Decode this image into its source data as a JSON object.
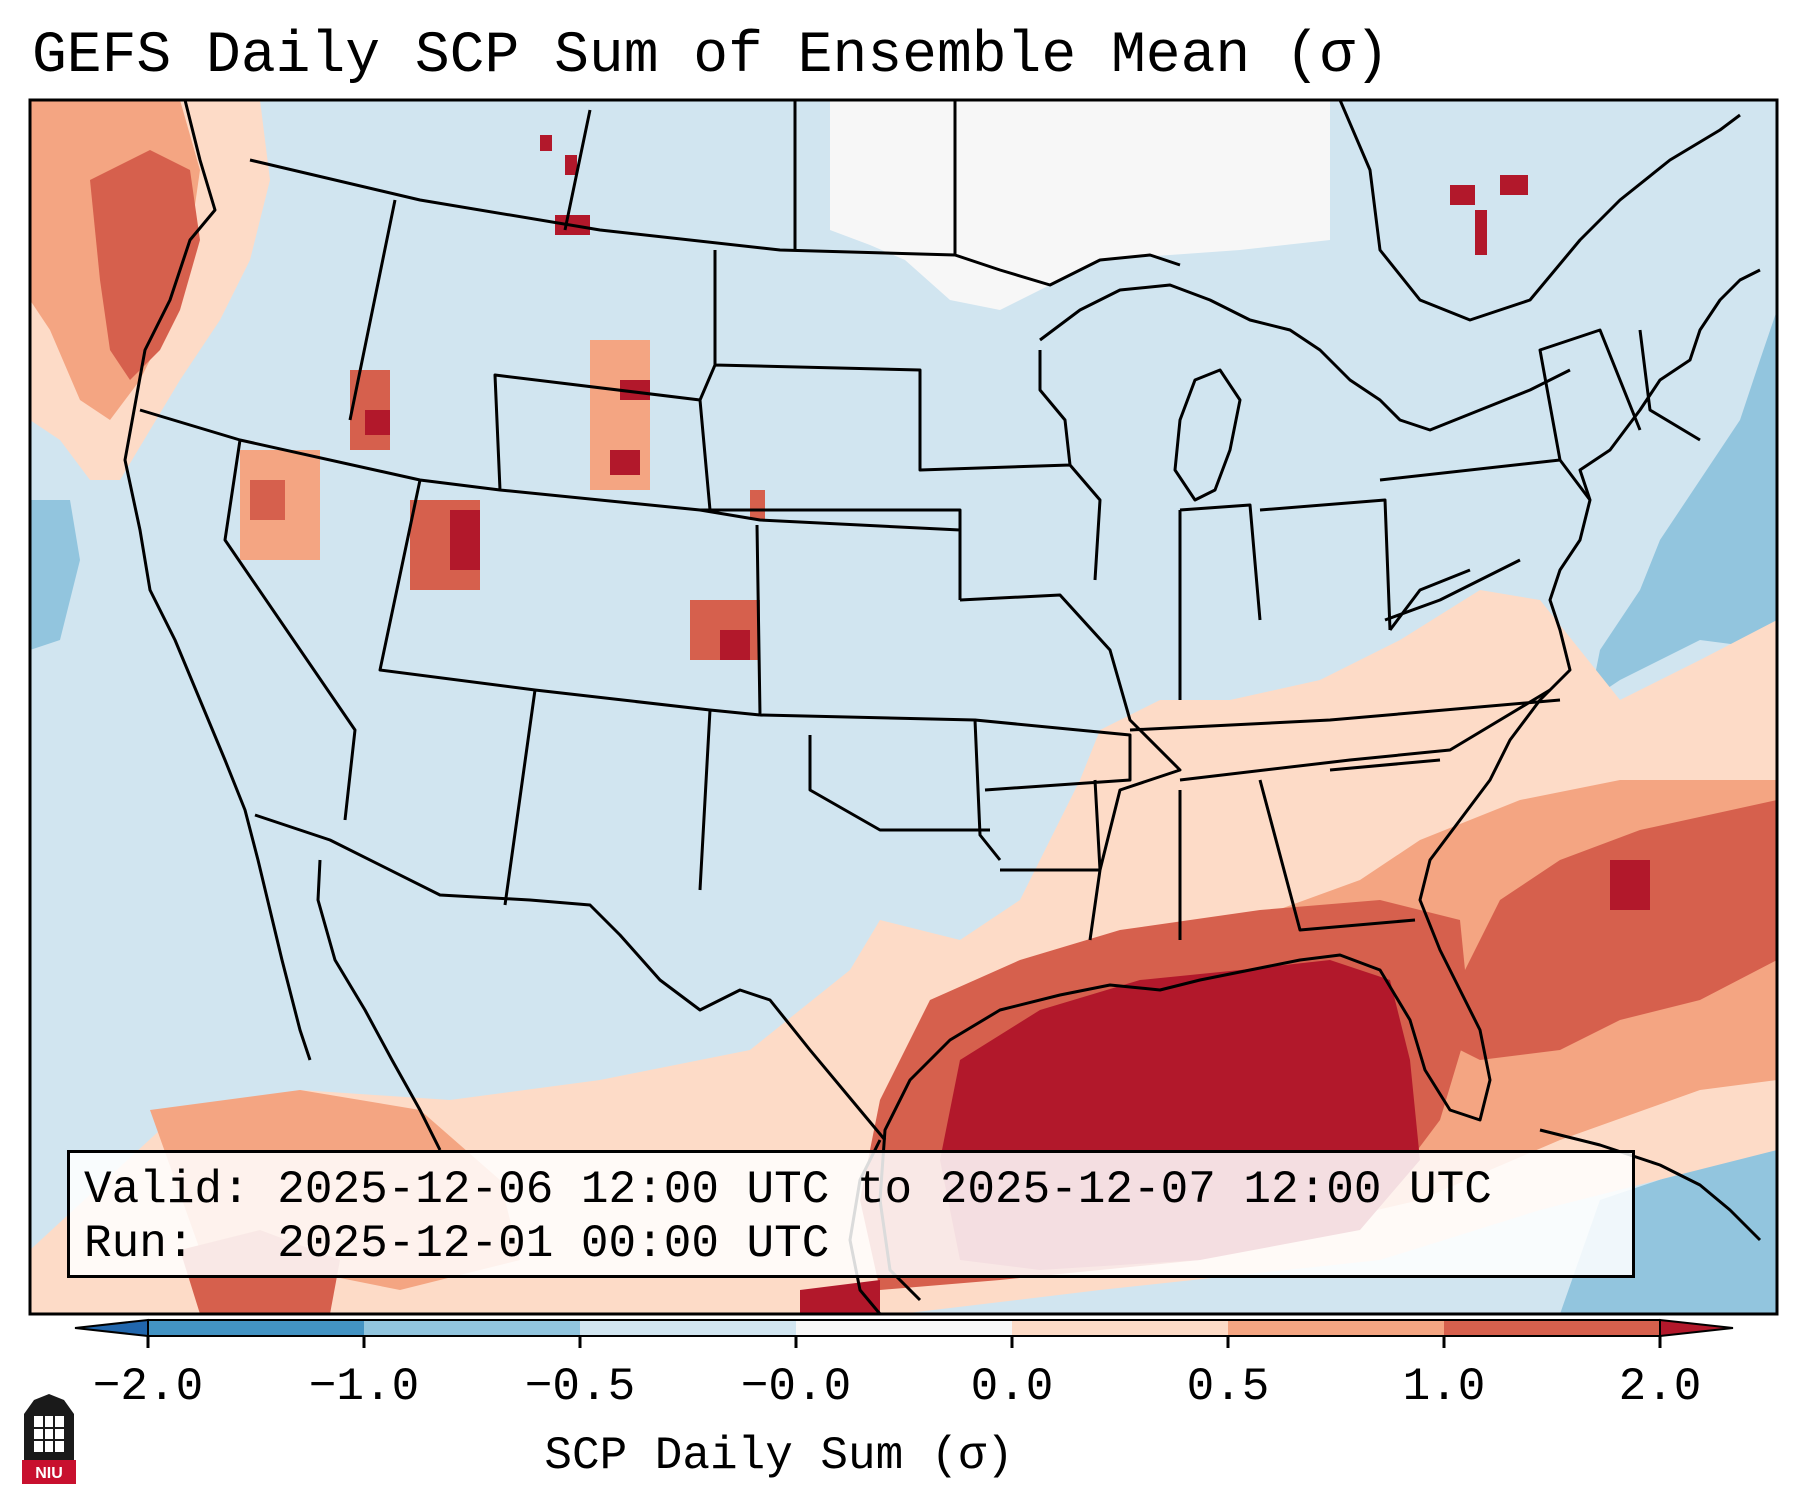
{
  "title": "GEFS Daily SCP Sum of Ensemble Mean (σ)",
  "info": {
    "valid_label": "Valid:",
    "valid_value": "2025-12-06 12:00 UTC to 2025-12-07 12:00 UTC",
    "run_label": "Run:",
    "run_value": "2025-12-01 00:00 UTC"
  },
  "colorbar": {
    "label": "SCP Daily Sum (σ)",
    "ticks": [
      "−2.0",
      "−1.0",
      "−0.5",
      "−0.0",
      "0.0",
      "0.5",
      "1.0",
      "2.0"
    ],
    "bins": [
      {
        "range": "< -2.0",
        "color": "#2166ac"
      },
      {
        "range": "-2.0 to -1.0",
        "color": "#4393c3"
      },
      {
        "range": "-1.0 to -0.5",
        "color": "#92c5de"
      },
      {
        "range": "-0.5 to -0.0",
        "color": "#d1e5f0"
      },
      {
        "range": "-0.0 to 0.0",
        "color": "#f7f7f7"
      },
      {
        "range": "0.0 to 0.5",
        "color": "#fddbc7"
      },
      {
        "range": "0.5 to 1.0",
        "color": "#f4a582"
      },
      {
        "range": "1.0 to 2.0",
        "color": "#d6604d"
      },
      {
        "range": "> 2.0",
        "color": "#b2182b"
      }
    ]
  },
  "logo": {
    "text": "NIU",
    "color": "#c8102e"
  }
}
